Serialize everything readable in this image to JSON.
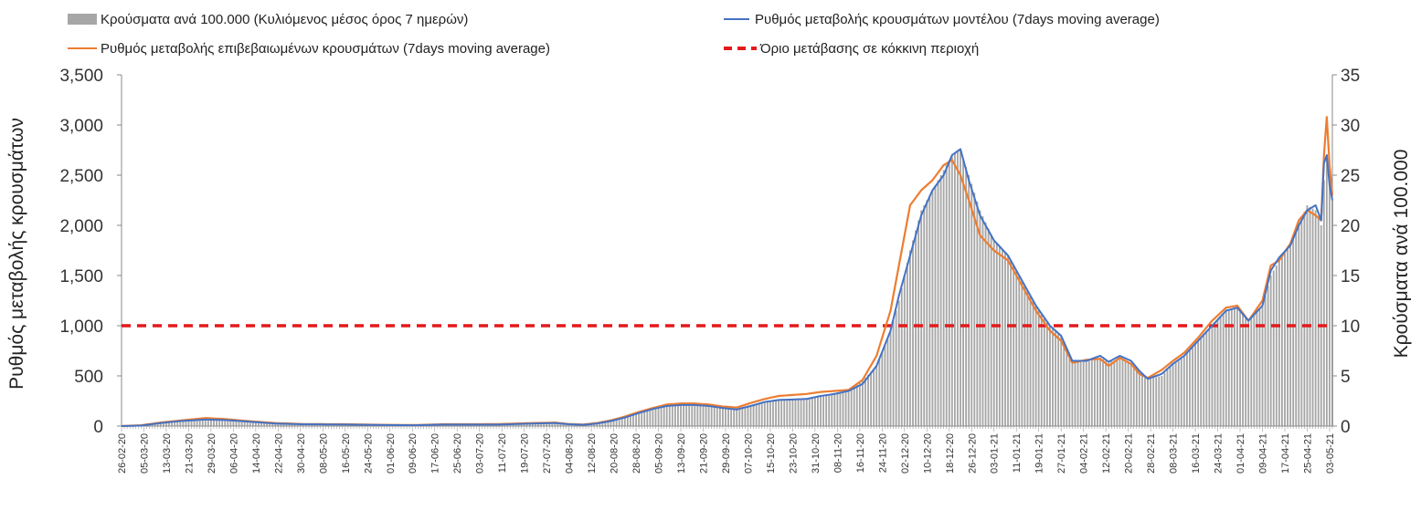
{
  "chart_data": {
    "type": "bar+line",
    "legend": [
      {
        "label": "Κρούσματα ανά 100.000 (Κυλιόμενος μέσος όρος 7 ημερών)",
        "color": "#a6a6a6",
        "kind": "bar"
      },
      {
        "label": "Ρυθμός μεταβολής κρουσμάτων μοντέλου (7days moving average)",
        "color": "#4472c4",
        "kind": "line"
      },
      {
        "label": "Ρυθμός μεταβολής επιβεβαιωμένων κρουσμάτων (7days moving average)",
        "color": "#ed7d31",
        "kind": "line"
      },
      {
        "label": "Όριο μετάβασης σε κόκκινη περιοχή",
        "color": "#e31a1c",
        "kind": "dashed"
      }
    ],
    "ylabel_left": "Ρυθμός μεταβολής κρουσμάτων",
    "ylabel_right": "Κρούσματα ανά 100.000",
    "ylim_left": [
      0,
      3500
    ],
    "ylim_right": [
      0,
      35
    ],
    "yticks_left": [
      "0",
      "500",
      "1,000",
      "1,500",
      "2,000",
      "2,500",
      "3,000",
      "3,500"
    ],
    "yticks_right": [
      "0",
      "5",
      "10",
      "15",
      "20",
      "25",
      "30",
      "35"
    ],
    "x_labels": [
      "26-02-20",
      "05-03-20",
      "13-03-20",
      "21-03-20",
      "29-03-20",
      "06-04-20",
      "14-04-20",
      "22-04-20",
      "30-04-20",
      "08-05-20",
      "16-05-20",
      "24-05-20",
      "01-06-20",
      "09-06-20",
      "17-06-20",
      "25-06-20",
      "03-07-20",
      "11-07-20",
      "19-07-20",
      "27-07-20",
      "04-08-20",
      "12-08-20",
      "20-08-20",
      "28-08-20",
      "05-09-20",
      "13-09-20",
      "21-09-20",
      "29-09-20",
      "07-10-20",
      "15-10-20",
      "23-10-20",
      "31-10-20",
      "08-11-20",
      "16-11-20",
      "24-11-20",
      "02-12-20",
      "10-12-20",
      "18-12-20",
      "26-12-20",
      "03-01-21",
      "11-01-21",
      "19-01-21",
      "27-01-21",
      "04-02-21",
      "12-02-21",
      "20-02-21",
      "28-02-21",
      "08-03-21",
      "16-03-21",
      "24-03-21",
      "01-04-21",
      "09-04-21",
      "17-04-21",
      "25-04-21",
      "03-05-21"
    ],
    "threshold_left": 1000,
    "total_days": 433,
    "series": [
      {
        "name": "Κρούσματα ανά 100.000 (Κυλιόμενος μέσος όρος 7 ημερών)",
        "axis": "right",
        "type": "bar",
        "points": [
          [
            0,
            0
          ],
          [
            7,
            0.1
          ],
          [
            14,
            0.3
          ],
          [
            21,
            0.5
          ],
          [
            30,
            0.7
          ],
          [
            37,
            0.7
          ],
          [
            45,
            0.5
          ],
          [
            50,
            0.4
          ],
          [
            55,
            0.3
          ],
          [
            65,
            0.2
          ],
          [
            80,
            0.2
          ],
          [
            95,
            0.1
          ],
          [
            105,
            0.1
          ],
          [
            115,
            0.2
          ],
          [
            125,
            0.2
          ],
          [
            135,
            0.2
          ],
          [
            147,
            0.3
          ],
          [
            155,
            0.3
          ],
          [
            160,
            0.2
          ],
          [
            165,
            0.2
          ],
          [
            170,
            0.4
          ],
          [
            175,
            0.7
          ],
          [
            180,
            1.0
          ],
          [
            185,
            1.4
          ],
          [
            190,
            1.8
          ],
          [
            195,
            2.1
          ],
          [
            200,
            2.2
          ],
          [
            205,
            2.2
          ],
          [
            210,
            2.1
          ],
          [
            215,
            2.0
          ],
          [
            220,
            1.8
          ],
          [
            225,
            2.1
          ],
          [
            230,
            2.4
          ],
          [
            235,
            2.6
          ],
          [
            240,
            2.7
          ],
          [
            245,
            2.8
          ],
          [
            250,
            3.0
          ],
          [
            255,
            3.3
          ],
          [
            260,
            3.6
          ],
          [
            265,
            4.5
          ],
          [
            270,
            6.0
          ],
          [
            275,
            9.5
          ],
          [
            278,
            12.5
          ],
          [
            282,
            17.5
          ],
          [
            286,
            21.5
          ],
          [
            290,
            23.5
          ],
          [
            294,
            25.5
          ],
          [
            297,
            27.0
          ],
          [
            300,
            27.5
          ],
          [
            303,
            25.0
          ],
          [
            307,
            21.5
          ],
          [
            312,
            18.5
          ],
          [
            317,
            17.0
          ],
          [
            322,
            14.5
          ],
          [
            327,
            12.0
          ],
          [
            332,
            10.0
          ],
          [
            336,
            9.0
          ],
          [
            340,
            6.5
          ],
          [
            345,
            6.5
          ],
          [
            350,
            6.8
          ],
          [
            353,
            6.3
          ],
          [
            357,
            6.8
          ],
          [
            361,
            6.3
          ],
          [
            364,
            5.2
          ],
          [
            367,
            4.7
          ],
          [
            372,
            5.0
          ],
          [
            376,
            6.3
          ],
          [
            380,
            7.0
          ],
          [
            385,
            8.5
          ],
          [
            390,
            10.0
          ],
          [
            395,
            11.5
          ],
          [
            399,
            11.8
          ],
          [
            403,
            10.5
          ],
          [
            408,
            12.0
          ],
          [
            411,
            15.0
          ],
          [
            414,
            16.5
          ],
          [
            418,
            18.0
          ],
          [
            421,
            20.0
          ],
          [
            424,
            22.0
          ],
          [
            427,
            21.5
          ],
          [
            429,
            20.0
          ],
          [
            430,
            24.5
          ],
          [
            431,
            27.0
          ],
          [
            432,
            24.5
          ],
          [
            433,
            22.5
          ]
        ]
      },
      {
        "name": "Ρυθμός μεταβολής κρουσμάτων μοντέλου (7days moving average)",
        "axis": "left",
        "type": "line",
        "points": [
          [
            0,
            0
          ],
          [
            7,
            5
          ],
          [
            14,
            30
          ],
          [
            21,
            50
          ],
          [
            30,
            65
          ],
          [
            37,
            60
          ],
          [
            45,
            45
          ],
          [
            50,
            35
          ],
          [
            55,
            25
          ],
          [
            65,
            18
          ],
          [
            80,
            15
          ],
          [
            95,
            10
          ],
          [
            105,
            8
          ],
          [
            115,
            15
          ],
          [
            125,
            15
          ],
          [
            135,
            15
          ],
          [
            147,
            25
          ],
          [
            155,
            30
          ],
          [
            160,
            18
          ],
          [
            165,
            12
          ],
          [
            170,
            25
          ],
          [
            175,
            50
          ],
          [
            180,
            85
          ],
          [
            185,
            130
          ],
          [
            190,
            170
          ],
          [
            195,
            200
          ],
          [
            200,
            210
          ],
          [
            205,
            210
          ],
          [
            210,
            200
          ],
          [
            215,
            180
          ],
          [
            220,
            165
          ],
          [
            225,
            200
          ],
          [
            230,
            240
          ],
          [
            235,
            260
          ],
          [
            240,
            265
          ],
          [
            245,
            270
          ],
          [
            250,
            300
          ],
          [
            255,
            320
          ],
          [
            260,
            350
          ],
          [
            265,
            420
          ],
          [
            270,
            600
          ],
          [
            275,
            950
          ],
          [
            278,
            1300
          ],
          [
            282,
            1700
          ],
          [
            286,
            2100
          ],
          [
            290,
            2350
          ],
          [
            294,
            2500
          ],
          [
            297,
            2700
          ],
          [
            300,
            2760
          ],
          [
            303,
            2450
          ],
          [
            307,
            2100
          ],
          [
            312,
            1850
          ],
          [
            317,
            1700
          ],
          [
            322,
            1450
          ],
          [
            327,
            1200
          ],
          [
            332,
            1000
          ],
          [
            336,
            900
          ],
          [
            340,
            650
          ],
          [
            345,
            650
          ],
          [
            350,
            700
          ],
          [
            353,
            640
          ],
          [
            357,
            700
          ],
          [
            361,
            650
          ],
          [
            364,
            550
          ],
          [
            367,
            470
          ],
          [
            372,
            520
          ],
          [
            376,
            620
          ],
          [
            380,
            700
          ],
          [
            385,
            850
          ],
          [
            390,
            1000
          ],
          [
            395,
            1150
          ],
          [
            399,
            1180
          ],
          [
            403,
            1050
          ],
          [
            408,
            1200
          ],
          [
            411,
            1550
          ],
          [
            414,
            1680
          ],
          [
            418,
            1800
          ],
          [
            421,
            2000
          ],
          [
            424,
            2150
          ],
          [
            427,
            2200
          ],
          [
            429,
            2050
          ],
          [
            430,
            2620
          ],
          [
            431,
            2700
          ],
          [
            432,
            2400
          ],
          [
            433,
            2250
          ]
        ]
      },
      {
        "name": "Ρυθμός μεταβολής επιβεβαιωμένων κρουσμάτων (7days moving average)",
        "axis": "left",
        "type": "line",
        "points": [
          [
            0,
            0
          ],
          [
            7,
            8
          ],
          [
            14,
            35
          ],
          [
            21,
            55
          ],
          [
            30,
            80
          ],
          [
            37,
            70
          ],
          [
            45,
            50
          ],
          [
            50,
            40
          ],
          [
            55,
            30
          ],
          [
            65,
            20
          ],
          [
            80,
            18
          ],
          [
            95,
            12
          ],
          [
            105,
            10
          ],
          [
            115,
            18
          ],
          [
            125,
            18
          ],
          [
            135,
            20
          ],
          [
            147,
            30
          ],
          [
            155,
            35
          ],
          [
            160,
            20
          ],
          [
            165,
            15
          ],
          [
            170,
            30
          ],
          [
            175,
            55
          ],
          [
            180,
            95
          ],
          [
            185,
            140
          ],
          [
            190,
            180
          ],
          [
            195,
            215
          ],
          [
            200,
            225
          ],
          [
            205,
            225
          ],
          [
            210,
            215
          ],
          [
            215,
            195
          ],
          [
            220,
            185
          ],
          [
            225,
            230
          ],
          [
            230,
            270
          ],
          [
            235,
            300
          ],
          [
            240,
            310
          ],
          [
            245,
            320
          ],
          [
            250,
            340
          ],
          [
            255,
            350
          ],
          [
            260,
            360
          ],
          [
            265,
            460
          ],
          [
            270,
            700
          ],
          [
            275,
            1150
          ],
          [
            278,
            1600
          ],
          [
            282,
            2200
          ],
          [
            286,
            2350
          ],
          [
            290,
            2450
          ],
          [
            294,
            2600
          ],
          [
            297,
            2650
          ],
          [
            300,
            2500
          ],
          [
            303,
            2250
          ],
          [
            307,
            1900
          ],
          [
            312,
            1750
          ],
          [
            317,
            1650
          ],
          [
            322,
            1400
          ],
          [
            327,
            1150
          ],
          [
            332,
            950
          ],
          [
            336,
            850
          ],
          [
            340,
            630
          ],
          [
            345,
            660
          ],
          [
            350,
            670
          ],
          [
            353,
            600
          ],
          [
            357,
            680
          ],
          [
            361,
            620
          ],
          [
            364,
            520
          ],
          [
            367,
            480
          ],
          [
            372,
            560
          ],
          [
            376,
            650
          ],
          [
            380,
            730
          ],
          [
            385,
            880
          ],
          [
            390,
            1050
          ],
          [
            395,
            1180
          ],
          [
            399,
            1200
          ],
          [
            403,
            1050
          ],
          [
            408,
            1250
          ],
          [
            411,
            1600
          ],
          [
            414,
            1650
          ],
          [
            418,
            1820
          ],
          [
            421,
            2050
          ],
          [
            424,
            2150
          ],
          [
            427,
            2100
          ],
          [
            429,
            2050
          ],
          [
            430,
            2700
          ],
          [
            431,
            3080
          ],
          [
            432,
            2600
          ],
          [
            433,
            2300
          ]
        ]
      }
    ]
  }
}
